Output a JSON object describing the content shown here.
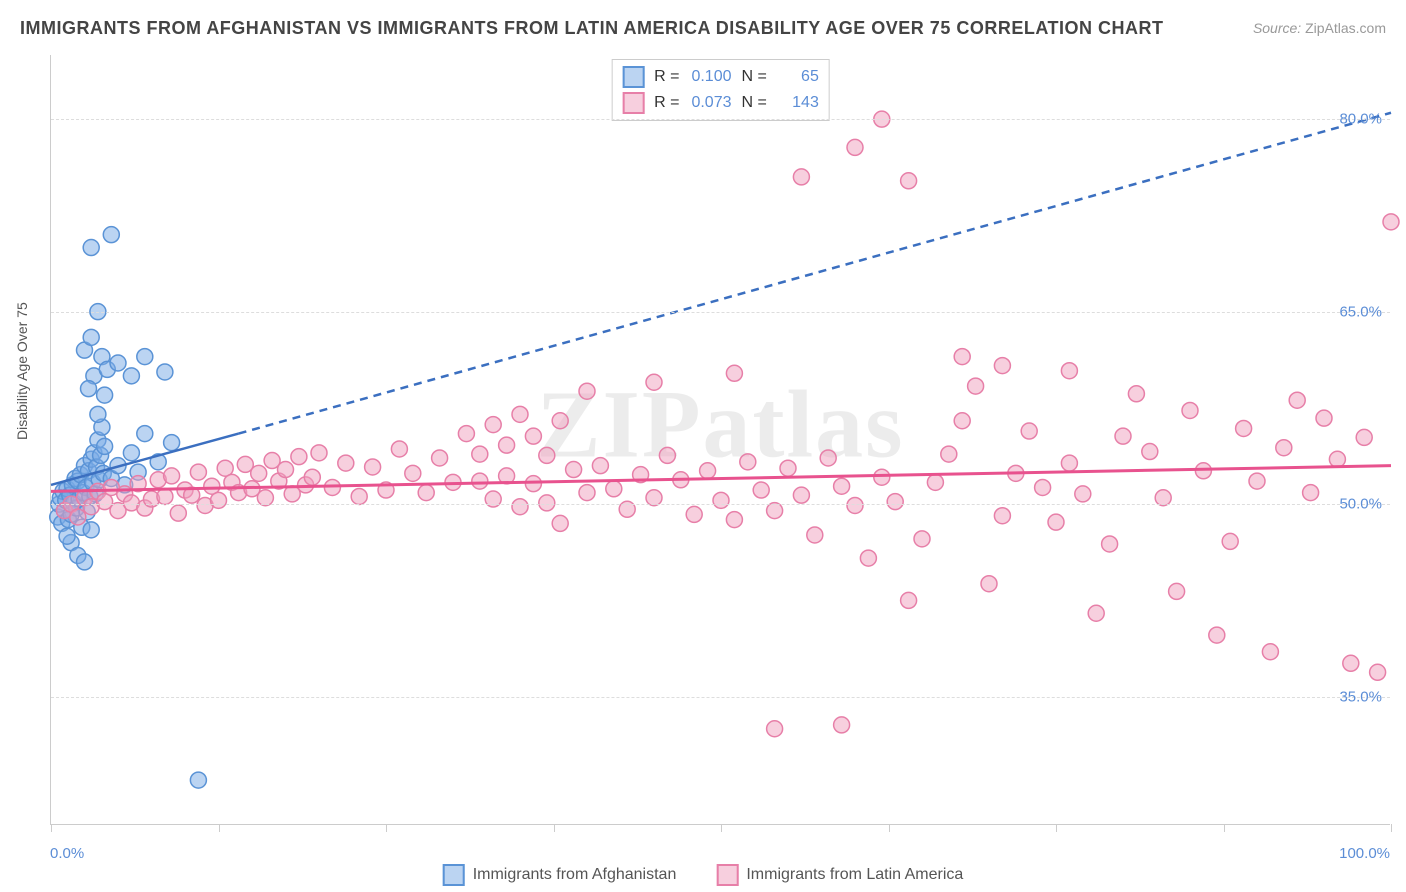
{
  "title": "IMMIGRANTS FROM AFGHANISTAN VS IMMIGRANTS FROM LATIN AMERICA DISABILITY AGE OVER 75 CORRELATION CHART",
  "source_label": "Source:",
  "source_value": "ZipAtlas.com",
  "watermark": "ZIPatlas",
  "ylabel": "Disability Age Over 75",
  "chart": {
    "type": "scatter",
    "background_color": "#ffffff",
    "grid_color": "#dddddd",
    "axis_color": "#cccccc",
    "tick_label_color": "#5b8dd6",
    "xlim": [
      0,
      100
    ],
    "ylim": [
      25,
      85
    ],
    "xticks_minor": [
      0,
      12.5,
      25,
      37.5,
      50,
      62.5,
      75,
      87.5,
      100
    ],
    "xtick_labels": [
      {
        "x": 0,
        "label": "0.0%"
      },
      {
        "x": 100,
        "label": "100.0%"
      }
    ],
    "ytick_labels": [
      {
        "y": 35,
        "label": "35.0%"
      },
      {
        "y": 50,
        "label": "50.0%"
      },
      {
        "y": 65,
        "label": "65.0%"
      },
      {
        "y": 80,
        "label": "80.0%"
      }
    ],
    "marker_radius": 8,
    "marker_stroke_width": 1.5,
    "series": [
      {
        "name": "Immigrants from Afghanistan",
        "fill": "rgba(120,170,230,0.5)",
        "stroke": "#5a93d6",
        "R": "0.100",
        "N": "65",
        "trend": {
          "solid": {
            "x1": 0,
            "y1": 51.5,
            "x2": 14,
            "y2": 55.5
          },
          "dashed": {
            "x1": 14,
            "y1": 55.5,
            "x2": 100,
            "y2": 80.5
          },
          "color": "#3b6fc0",
          "width": 2.5
        },
        "points": [
          [
            0.5,
            49
          ],
          [
            0.6,
            50
          ],
          [
            0.7,
            50.5
          ],
          [
            0.8,
            48.5
          ],
          [
            0.9,
            51
          ],
          [
            1.0,
            49.5
          ],
          [
            1.1,
            50.3
          ],
          [
            1.2,
            51.2
          ],
          [
            1.3,
            48.8
          ],
          [
            1.4,
            50.7
          ],
          [
            1.5,
            49.2
          ],
          [
            1.6,
            51.5
          ],
          [
            1.7,
            50.1
          ],
          [
            1.8,
            52
          ],
          [
            1.9,
            49.7
          ],
          [
            2.0,
            51.8
          ],
          [
            2.1,
            50.4
          ],
          [
            2.2,
            52.3
          ],
          [
            2.3,
            48.2
          ],
          [
            2.4,
            50.9
          ],
          [
            2.5,
            53
          ],
          [
            2.6,
            51.3
          ],
          [
            2.7,
            49.4
          ],
          [
            2.8,
            52.6
          ],
          [
            2.9,
            50.6
          ],
          [
            3.0,
            53.5
          ],
          [
            3.1,
            51.7
          ],
          [
            3.2,
            54
          ],
          [
            3.3,
            50.8
          ],
          [
            3.4,
            52.9
          ],
          [
            3.5,
            55
          ],
          [
            3.6,
            51.9
          ],
          [
            3.7,
            53.8
          ],
          [
            3.8,
            56
          ],
          [
            3.9,
            52.4
          ],
          [
            4.0,
            54.5
          ],
          [
            1.5,
            47
          ],
          [
            2.0,
            46
          ],
          [
            2.5,
            45.5
          ],
          [
            1.2,
            47.5
          ],
          [
            3.0,
            48
          ],
          [
            4.5,
            52
          ],
          [
            5.0,
            53
          ],
          [
            5.5,
            51.5
          ],
          [
            6.0,
            54
          ],
          [
            6.5,
            52.5
          ],
          [
            7.0,
            55.5
          ],
          [
            8.0,
            53.3
          ],
          [
            9.0,
            54.8
          ],
          [
            3.5,
            57
          ],
          [
            4.0,
            58.5
          ],
          [
            3.2,
            60
          ],
          [
            2.8,
            59
          ],
          [
            3.8,
            61.5
          ],
          [
            4.2,
            60.5
          ],
          [
            2.5,
            62
          ],
          [
            3.0,
            63
          ],
          [
            5.0,
            61
          ],
          [
            6.0,
            60
          ],
          [
            7.0,
            61.5
          ],
          [
            8.5,
            60.3
          ],
          [
            3.5,
            65
          ],
          [
            4.5,
            71
          ],
          [
            3.0,
            70
          ],
          [
            11,
            28.5
          ]
        ]
      },
      {
        "name": "Immigrants from Latin America",
        "fill": "rgba(240,160,190,0.5)",
        "stroke": "#e77fa8",
        "R": "0.073",
        "N": "143",
        "trend": {
          "solid": {
            "x1": 0,
            "y1": 51,
            "x2": 100,
            "y2": 53
          },
          "color": "#e8528e",
          "width": 3
        },
        "points": [
          [
            1,
            49.5
          ],
          [
            1.5,
            50
          ],
          [
            2,
            49
          ],
          [
            2.5,
            50.5
          ],
          [
            3,
            49.8
          ],
          [
            3.5,
            51
          ],
          [
            4,
            50.2
          ],
          [
            4.5,
            51.3
          ],
          [
            5,
            49.5
          ],
          [
            5.5,
            50.8
          ],
          [
            6,
            50.1
          ],
          [
            6.5,
            51.6
          ],
          [
            7,
            49.7
          ],
          [
            7.5,
            50.4
          ],
          [
            8,
            51.9
          ],
          [
            8.5,
            50.6
          ],
          [
            9,
            52.2
          ],
          [
            9.5,
            49.3
          ],
          [
            10,
            51.1
          ],
          [
            10.5,
            50.7
          ],
          [
            11,
            52.5
          ],
          [
            11.5,
            49.9
          ],
          [
            12,
            51.4
          ],
          [
            12.5,
            50.3
          ],
          [
            13,
            52.8
          ],
          [
            13.5,
            51.7
          ],
          [
            14,
            50.9
          ],
          [
            14.5,
            53.1
          ],
          [
            15,
            51.2
          ],
          [
            15.5,
            52.4
          ],
          [
            16,
            50.5
          ],
          [
            16.5,
            53.4
          ],
          [
            17,
            51.8
          ],
          [
            17.5,
            52.7
          ],
          [
            18,
            50.8
          ],
          [
            18.5,
            53.7
          ],
          [
            19,
            51.5
          ],
          [
            19.5,
            52.1
          ],
          [
            20,
            54
          ],
          [
            21,
            51.3
          ],
          [
            22,
            53.2
          ],
          [
            23,
            50.6
          ],
          [
            24,
            52.9
          ],
          [
            25,
            51.1
          ],
          [
            26,
            54.3
          ],
          [
            27,
            52.4
          ],
          [
            28,
            50.9
          ],
          [
            29,
            53.6
          ],
          [
            30,
            51.7
          ],
          [
            31,
            55.5
          ],
          [
            32,
            53.9
          ],
          [
            33,
            56.2
          ],
          [
            34,
            54.6
          ],
          [
            35,
            57
          ],
          [
            36,
            55.3
          ],
          [
            37,
            53.8
          ],
          [
            38,
            56.5
          ],
          [
            32,
            51.8
          ],
          [
            33,
            50.4
          ],
          [
            34,
            52.2
          ],
          [
            35,
            49.8
          ],
          [
            36,
            51.6
          ],
          [
            37,
            50.1
          ],
          [
            38,
            48.5
          ],
          [
            39,
            52.7
          ],
          [
            40,
            50.9
          ],
          [
            41,
            53
          ],
          [
            42,
            51.2
          ],
          [
            43,
            49.6
          ],
          [
            44,
            52.3
          ],
          [
            45,
            50.5
          ],
          [
            46,
            53.8
          ],
          [
            47,
            51.9
          ],
          [
            48,
            49.2
          ],
          [
            49,
            52.6
          ],
          [
            50,
            50.3
          ],
          [
            51,
            48.8
          ],
          [
            52,
            53.3
          ],
          [
            53,
            51.1
          ],
          [
            54,
            49.5
          ],
          [
            55,
            52.8
          ],
          [
            56,
            50.7
          ],
          [
            57,
            47.6
          ],
          [
            58,
            53.6
          ],
          [
            59,
            51.4
          ],
          [
            60,
            49.9
          ],
          [
            61,
            45.8
          ],
          [
            62,
            52.1
          ],
          [
            63,
            50.2
          ],
          [
            64,
            42.5
          ],
          [
            65,
            47.3
          ],
          [
            66,
            51.7
          ],
          [
            67,
            53.9
          ],
          [
            68,
            56.5
          ],
          [
            69,
            59.2
          ],
          [
            70,
            43.8
          ],
          [
            71,
            49.1
          ],
          [
            72,
            52.4
          ],
          [
            73,
            55.7
          ],
          [
            74,
            51.3
          ],
          [
            75,
            48.6
          ],
          [
            76,
            53.2
          ],
          [
            77,
            50.8
          ],
          [
            78,
            41.5
          ],
          [
            79,
            46.9
          ],
          [
            80,
            55.3
          ],
          [
            81,
            58.6
          ],
          [
            82,
            54.1
          ],
          [
            83,
            50.5
          ],
          [
            84,
            43.2
          ],
          [
            85,
            57.3
          ],
          [
            86,
            52.6
          ],
          [
            87,
            39.8
          ],
          [
            88,
            47.1
          ],
          [
            89,
            55.9
          ],
          [
            90,
            51.8
          ],
          [
            91,
            38.5
          ],
          [
            92,
            54.4
          ],
          [
            93,
            58.1
          ],
          [
            94,
            50.9
          ],
          [
            95,
            56.7
          ],
          [
            96,
            53.5
          ],
          [
            97,
            37.6
          ],
          [
            98,
            55.2
          ],
          [
            99,
            36.9
          ],
          [
            40,
            58.8
          ],
          [
            45,
            59.5
          ],
          [
            51,
            60.2
          ],
          [
            68,
            61.5
          ],
          [
            71,
            60.8
          ],
          [
            76,
            60.4
          ],
          [
            54,
            32.5
          ],
          [
            59,
            32.8
          ],
          [
            56,
            75.5
          ],
          [
            60,
            77.8
          ],
          [
            62,
            80
          ],
          [
            64,
            75.2
          ],
          [
            100,
            72
          ]
        ]
      }
    ]
  },
  "legend_bottom": [
    "Immigrants from Afghanistan",
    "Immigrants from Latin America"
  ]
}
